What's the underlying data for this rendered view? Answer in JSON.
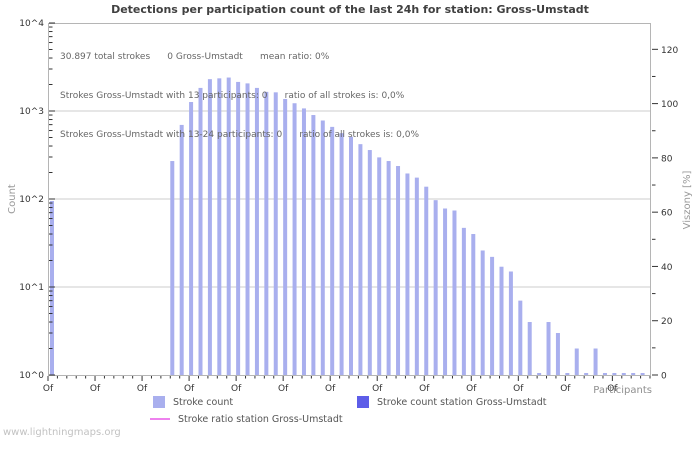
{
  "title": "Detections per participation count of the last 24h for station: Gross-Umstadt",
  "watermark": "www.lightningmaps.org",
  "annotations": {
    "line1": "30.897 total strokes      0 Gross-Umstadt      mean ratio: 0%",
    "line2": "Strokes Gross-Umstadt with 13 participants: 0      ratio of all strokes is: 0,0%",
    "line3": "Strokes Gross-Umstadt with 13-24 participants: 0      ratio of all strokes is: 0,0%"
  },
  "axes": {
    "left_label": "Count",
    "right_label": "Viszony [%]",
    "x_label": "Participants"
  },
  "legend": {
    "stroke_count": "Stroke count",
    "stroke_count_station": "Stroke count station Gross-Umstadt",
    "stroke_ratio_station": "Stroke ratio station Gross-Umstadt"
  },
  "colors": {
    "bar_light": "#a9afee",
    "bar_station": "#5d5de8",
    "ratio_line": "#ee82ee",
    "grid": "#cccccc",
    "border": "#b5b5b5",
    "tick": "#333333",
    "tick_text": "#333333"
  },
  "chart_data": {
    "type": "bar",
    "title": "Detections per participation count of the last 24h for station: Gross-Umstadt",
    "xlabel": "Participants",
    "x_axis": {
      "tick_label": "Of",
      "units_total": 64,
      "major_step": 5,
      "labeled_majors_to": 60
    },
    "y_left": {
      "label": "Count",
      "scale": "log",
      "range": [
        1,
        10000
      ],
      "ticks": [
        "10^0",
        "10^1",
        "10^2",
        "10^3",
        "10^4"
      ],
      "grid": true
    },
    "y_right": {
      "label": "Viszony [%]",
      "ticks": [
        0,
        20,
        40,
        60,
        80,
        100,
        120
      ],
      "minor_step": 10,
      "max_displayed": 129.7
    },
    "edge_bar": {
      "participant": 0,
      "value": 95
    },
    "series": [
      {
        "name": "Stroke count",
        "color": "#a9afee",
        "start_participant": 13,
        "values": [
          270,
          695,
          1265,
          1830,
          2300,
          2350,
          2400,
          2140,
          2060,
          1830,
          1650,
          1630,
          1370,
          1225,
          1070,
          900,
          780,
          660,
          560,
          510,
          420,
          360,
          297,
          270,
          237,
          195,
          175,
          138,
          97,
          78,
          74,
          47,
          40,
          26,
          22,
          17,
          15,
          7,
          4,
          1,
          4,
          3,
          1,
          2,
          1,
          2,
          1,
          1,
          1,
          1,
          1
        ]
      },
      {
        "name": "Stroke count station Gross-Umstadt",
        "color": "#5d5de8",
        "values": []
      },
      {
        "name": "Stroke ratio station Gross-Umstadt",
        "color": "#ee82ee",
        "values": []
      }
    ],
    "stats": {
      "total_strokes": "30.897",
      "station_strokes": 0,
      "mean_ratio_pct": 0
    }
  }
}
